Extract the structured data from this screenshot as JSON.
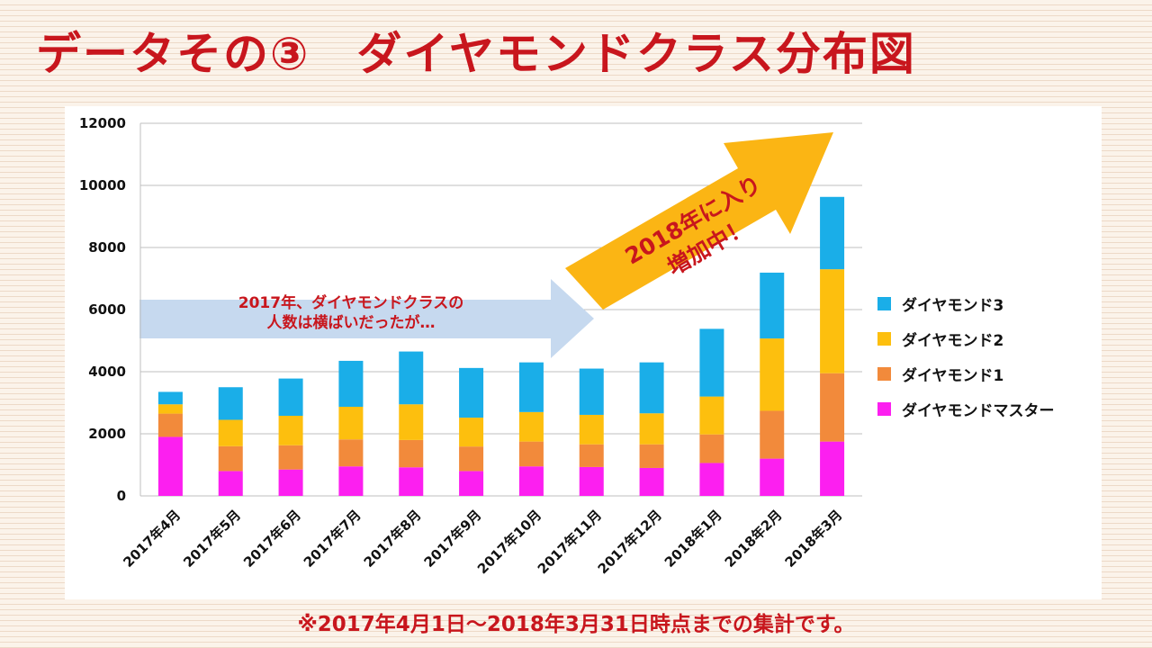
{
  "page": {
    "title": "データその③　ダイヤモンドクラス分布図",
    "footnote": "※2017年4月1日〜2018年3月31日時点までの集計です。"
  },
  "annotations": {
    "flat_line1": "2017年、ダイヤモンドクラスの",
    "flat_line2": "人数は横ばいだったが…",
    "up_line1": "2018年に入り",
    "up_line2": "増加中！"
  },
  "colors": {
    "title": "#c8161d",
    "d3": "#1aaee8",
    "d2": "#fdbf0e",
    "d1": "#f28a3b",
    "master": "#fc1ff0",
    "flat_arrow": "#c6d9ef",
    "up_arrow": "#fbb514"
  },
  "legend": [
    {
      "label": "ダイヤモンド3",
      "color": "#1aaee8"
    },
    {
      "label": "ダイヤモンド2",
      "color": "#fdbf0e"
    },
    {
      "label": "ダイヤモンド1",
      "color": "#f28a3b"
    },
    {
      "label": "ダイヤモンドマスター",
      "color": "#fc1ff0"
    }
  ],
  "chart_data": {
    "type": "bar",
    "stacked": true,
    "title": "",
    "xlabel": "",
    "ylabel": "",
    "ylim": [
      0,
      12000
    ],
    "yticks": [
      0,
      2000,
      4000,
      6000,
      8000,
      10000,
      12000
    ],
    "grid": "horizontal",
    "legend_position": "right",
    "categories": [
      "2017年4月",
      "2017年5月",
      "2017年6月",
      "2017年7月",
      "2017年8月",
      "2017年9月",
      "2017年10月",
      "2017年11月",
      "2017年12月",
      "2018年1月",
      "2018年2月",
      "2018年3月"
    ],
    "series": [
      {
        "name": "ダイヤモンドマスター",
        "color": "#fc1ff0",
        "values": [
          1900,
          800,
          850,
          950,
          920,
          800,
          950,
          930,
          900,
          1060,
          1200,
          1750
        ]
      },
      {
        "name": "ダイヤモンド1",
        "color": "#f28a3b",
        "values": [
          750,
          800,
          780,
          870,
          880,
          790,
          800,
          730,
          760,
          920,
          1540,
          2200
        ]
      },
      {
        "name": "ダイヤモンド2",
        "color": "#fdbf0e",
        "values": [
          300,
          850,
          950,
          1050,
          1150,
          930,
          950,
          950,
          1000,
          1220,
          2330,
          3350
        ]
      },
      {
        "name": "ダイヤモンド3",
        "color": "#1aaee8",
        "values": [
          400,
          1050,
          1200,
          1480,
          1700,
          1600,
          1600,
          1490,
          1640,
          2180,
          2120,
          2330
        ]
      }
    ]
  }
}
